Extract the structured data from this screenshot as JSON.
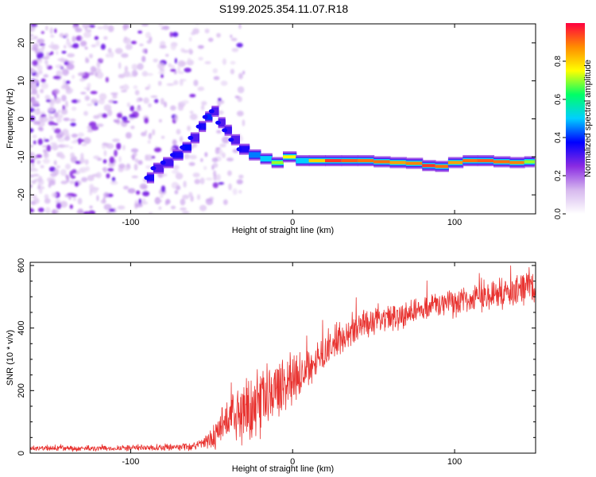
{
  "title": "S199.2025.354.11.07.R18",
  "chart_data": [
    {
      "type": "heatmap",
      "name": "spectrogram",
      "xlabel": "Height of straight line (km)",
      "ylabel": "Frequency (Hz)",
      "xlim": [
        -162,
        150
      ],
      "ylim": [
        -25,
        25
      ],
      "x_ticks": [
        -100,
        0,
        100
      ],
      "y_ticks": [
        -20,
        -10,
        0,
        10,
        20
      ],
      "colorbar": {
        "label": "Normalized spectral amplitude",
        "range": [
          0,
          1
        ],
        "ticks": [
          "0.0",
          "0.2",
          "0.4",
          "0.6",
          "0.8"
        ],
        "colors": [
          "#ffffff",
          "#d6b8ee",
          "#8a2be2",
          "#0000ff",
          "#00cfff",
          "#00ff66",
          "#ffff00",
          "#ff8c00",
          "#ff0040"
        ]
      },
      "noise_region_x": [
        -162,
        -40
      ],
      "ridge": [
        {
          "x": -90,
          "y": -15.5,
          "amp": 0.35
        },
        {
          "x": -86,
          "y": -13.0,
          "amp": 0.3
        },
        {
          "x": -80,
          "y": -11.5,
          "amp": 0.32
        },
        {
          "x": -74,
          "y": -9.5,
          "amp": 0.35
        },
        {
          "x": -68,
          "y": -7.5,
          "amp": 0.38
        },
        {
          "x": -63,
          "y": -5.0,
          "amp": 0.3
        },
        {
          "x": -58,
          "y": -2.0,
          "amp": 0.35
        },
        {
          "x": -54,
          "y": 0.5,
          "amp": 0.4
        },
        {
          "x": -50,
          "y": 2.0,
          "amp": 0.3
        },
        {
          "x": -46,
          "y": -1.0,
          "amp": 0.3
        },
        {
          "x": -42,
          "y": -3.0,
          "amp": 0.32
        },
        {
          "x": -38,
          "y": -5.5,
          "amp": 0.3
        },
        {
          "x": -33,
          "y": -8.0,
          "amp": 0.35
        },
        {
          "x": -27,
          "y": -9.5,
          "amp": 0.45
        },
        {
          "x": -20,
          "y": -10.5,
          "amp": 0.55
        },
        {
          "x": -13,
          "y": -11.5,
          "amp": 0.7
        },
        {
          "x": -6,
          "y": -10.0,
          "amp": 0.75
        },
        {
          "x": 2,
          "y": -11.0,
          "amp": 0.5
        },
        {
          "x": 10,
          "y": -11.0,
          "amp": 0.8
        },
        {
          "x": 20,
          "y": -11.0,
          "amp": 0.95
        },
        {
          "x": 30,
          "y": -11.0,
          "amp": 0.92
        },
        {
          "x": 40,
          "y": -11.0,
          "amp": 0.9
        },
        {
          "x": 50,
          "y": -11.3,
          "amp": 0.9
        },
        {
          "x": 60,
          "y": -11.5,
          "amp": 0.85
        },
        {
          "x": 70,
          "y": -11.7,
          "amp": 0.88
        },
        {
          "x": 80,
          "y": -12.3,
          "amp": 0.95
        },
        {
          "x": 88,
          "y": -12.5,
          "amp": 0.9
        },
        {
          "x": 96,
          "y": -11.5,
          "amp": 0.85
        },
        {
          "x": 105,
          "y": -11.0,
          "amp": 0.9
        },
        {
          "x": 114,
          "y": -11.0,
          "amp": 0.92
        },
        {
          "x": 124,
          "y": -11.3,
          "amp": 0.9
        },
        {
          "x": 134,
          "y": -11.5,
          "amp": 0.88
        },
        {
          "x": 143,
          "y": -11.3,
          "amp": 0.7
        },
        {
          "x": 149,
          "y": -11.0,
          "amp": 0.6
        }
      ]
    },
    {
      "type": "line",
      "name": "snr",
      "xlabel": "Height of straight line (km)",
      "ylabel": "SNR (10 * v/v)",
      "xlim": [
        -162,
        150
      ],
      "ylim": [
        0,
        610
      ],
      "x_ticks": [
        -100,
        0,
        100
      ],
      "y_ticks": [
        0,
        200,
        400,
        600
      ],
      "color": "#e8322f",
      "envelope": {
        "x": [
          -162,
          -120,
          -80,
          -60,
          -50,
          -45,
          -40,
          -30,
          -20,
          -10,
          0,
          10,
          20,
          30,
          40,
          60,
          80,
          100,
          120,
          140,
          150
        ],
        "mean": [
          15,
          15,
          18,
          22,
          45,
          80,
          110,
          130,
          160,
          200,
          240,
          280,
          330,
          370,
          400,
          430,
          465,
          480,
          500,
          520,
          535
        ],
        "spread": [
          10,
          10,
          12,
          15,
          40,
          70,
          90,
          110,
          120,
          110,
          90,
          80,
          70,
          60,
          55,
          50,
          50,
          50,
          55,
          60,
          60
        ]
      }
    }
  ]
}
